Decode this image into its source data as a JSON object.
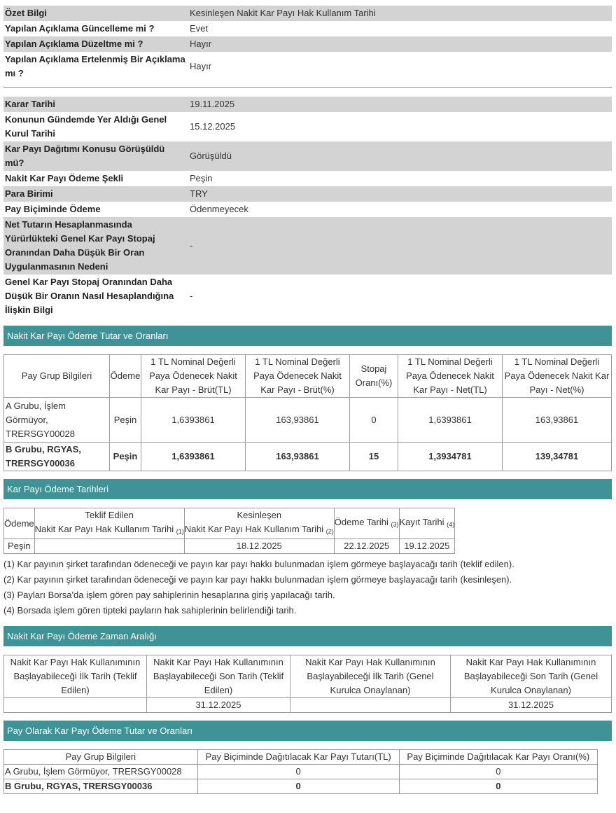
{
  "summary": [
    {
      "k": "Özet Bilgi",
      "v": "Kesinleşen Nakit Kar Payı Hak Kullanım Tarihi"
    },
    {
      "k": "Yapılan Açıklama Güncelleme mi ?",
      "v": "Evet"
    },
    {
      "k": "Yapılan Açıklama Düzeltme mi ?",
      "v": "Hayır"
    },
    {
      "k": "Yapılan Açıklama Ertelenmiş Bir Açıklama mı ?",
      "v": "Hayır"
    }
  ],
  "details": [
    {
      "k": "Karar Tarihi",
      "v": "19.11.2025"
    },
    {
      "k": "Konunun Gündemde Yer Aldığı Genel Kurul Tarihi",
      "v": "15.12.2025"
    },
    {
      "k": "Kar Payı Dağıtımı Konusu Görüşüldü mü?",
      "v": "Görüşüldü"
    },
    {
      "k": "Nakit Kar Payı Ödeme Şekli",
      "v": "Peşin"
    },
    {
      "k": "Para Birimi",
      "v": "TRY"
    },
    {
      "k": "Pay Biçiminde Ödeme",
      "v": "Ödenmeyecek"
    },
    {
      "k": "Net Tutarın Hesaplanmasında Yürürlükteki Genel Kar Payı Stopaj Oranından Daha Düşük Bir Oran Uygulanmasının Nedeni",
      "v": "-"
    },
    {
      "k": "Genel Kar Payı Stopaj Oranından Daha Düşük Bir Oranın Nasıl Hesaplandığına İlişkin Bilgi",
      "v": "-"
    }
  ],
  "s1": {
    "title": "Nakit Kar Payı Ödeme Tutar ve Oranları",
    "headers": [
      "Pay Grup Bilgileri",
      "Ödeme",
      "1 TL Nominal Değerli Paya Ödenecek Nakit Kar Payı - Brüt(TL)",
      "1 TL Nominal Değerli Paya Ödenecek Nakit Kar Payı - Brüt(%)",
      "Stopaj Oranı(%)",
      "1 TL Nominal Değerli Paya Ödenecek Nakit Kar Payı - Net(TL)",
      "1 TL Nominal Değerli Paya Ödenecek Nakit Kar Payı - Net(%)"
    ],
    "rows": [
      [
        "A Grubu, İşlem Görmüyor, TRERSGY00028",
        "Peşin",
        "1,6393861",
        "163,93861",
        "0",
        "1,6393861",
        "163,93861"
      ],
      [
        "B Grubu, RGYAS, TRERSGY00036",
        "Peşin",
        "1,6393861",
        "163,93861",
        "15",
        "1,3934781",
        "139,34781"
      ]
    ]
  },
  "s2": {
    "title": "Kar Payı Ödeme Tarihleri",
    "h_odeme": "Ödeme",
    "h_teklif1": "Teklif Edilen",
    "h_teklif2": "Nakit Kar Payı Hak Kullanım Tarihi",
    "n1": "(1)",
    "h_kes1": "Kesinleşen",
    "h_kes2": "Nakit Kar Payı Hak Kullanım Tarihi",
    "n2": "(2)",
    "h_odt": "Ödeme Tarihi",
    "n3": "(3)",
    "h_kayit": "Kayıt Tarihi",
    "n4": "(4)",
    "row": [
      "Peşin",
      "",
      "18.12.2025",
      "22.12.2025",
      "19.12.2025"
    ],
    "notes": [
      "(1) Kar payının şirket tarafından ödeneceği ve payın kar payı hakkı bulunmadan işlem görmeye başlayacağı tarih (teklif edilen).",
      "(2) Kar payının şirket tarafından ödeneceği ve payın kar payı hakkı bulunmadan işlem görmeye başlayacağı tarih (kesinleşen).",
      "(3) Payları Borsa'da işlem gören pay sahiplerinin hesaplarına giriş yapılacağı tarih.",
      "(4) Borsada işlem gören tipteki payların hak sahiplerinin belirlendiği tarih."
    ]
  },
  "s3": {
    "title": "Nakit Kar Payı Ödeme Zaman Aralığı",
    "headers": [
      "Nakit Kar Payı Hak Kullanımının Başlayabileceği İlk Tarih (Teklif Edilen)",
      "Nakit Kar Payı Hak Kullanımının Başlayabileceği Son Tarih (Teklif Edilen)",
      "Nakit Kar Payı Hak Kullanımının Başlayabileceği İlk Tarih (Genel Kurulca Onaylanan)",
      "Nakit Kar Payı Hak Kullanımının Başlayabileceği Son Tarih (Genel Kurulca Onaylanan)"
    ],
    "row": [
      "",
      "31.12.2025",
      "",
      "31.12.2025"
    ]
  },
  "s4": {
    "title": "Pay Olarak Kar Payı Ödeme Tutar ve Oranları",
    "headers": [
      "Pay Grup Bilgileri",
      "Pay Biçiminde Dağıtılacak Kar Payı Tutarı(TL)",
      "Pay Biçiminde Dağıtılacak Kar Payı Oranı(%)"
    ],
    "rows": [
      [
        "A Grubu, İşlem Görmüyor, TRERSGY00028",
        "0",
        "0"
      ],
      [
        "B Grubu, RGYAS, TRERSGY00036",
        "0",
        "0"
      ]
    ]
  },
  "colors": {
    "header_bar": "#3f9396",
    "row_gray": "#d3d3d3"
  }
}
